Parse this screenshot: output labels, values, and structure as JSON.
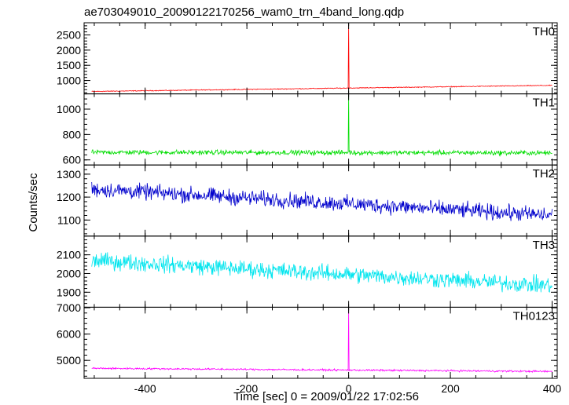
{
  "chart_data": {
    "type": "line",
    "title": "ae703049010_20090122170256_wam0_trn_4band_long.qdp",
    "xlabel": "Time [sec] 0 = 2009/01/22 17:02:56",
    "ylabel": "Counts/sec",
    "xlim": [
      -520,
      410
    ],
    "xticks": [
      -400,
      -200,
      0,
      200,
      400
    ],
    "x_start": -505,
    "x_end": 400,
    "grid": false,
    "panels": [
      {
        "name": "TH0",
        "color": "#ff0000",
        "ylim": [
          560,
          2900
        ],
        "yticks": [
          1000,
          1500,
          2000,
          2500
        ],
        "baseline_start": 640,
        "baseline_end": 840,
        "noise": 20,
        "spike_x": 0,
        "spike_top": 2900,
        "spike_step": 100
      },
      {
        "name": "TH1",
        "color": "#00dd00",
        "ylim": [
          560,
          1120
        ],
        "yticks": [
          600,
          800,
          1000
        ],
        "baseline_start": 660,
        "baseline_end": 655,
        "noise": 28,
        "spike_x": 0,
        "spike_top": 1120,
        "spike_step": 55
      },
      {
        "name": "TH2",
        "color": "#0000cc",
        "ylim": [
          1030,
          1340
        ],
        "yticks": [
          1100,
          1200,
          1300
        ],
        "baseline_start": 1235,
        "baseline_end": 1120,
        "noise": 50
      },
      {
        "name": "TH3",
        "color": "#00e5ee",
        "ylim": [
          1820,
          2200
        ],
        "yticks": [
          1900,
          2000,
          2100
        ],
        "baseline_start": 2070,
        "baseline_end": 1935,
        "noise": 65
      },
      {
        "name": "TH0123",
        "color": "#ff00ff",
        "ylim": [
          4320,
          7020
        ],
        "yticks": [
          5000,
          6000,
          7000
        ],
        "baseline_start": 4700,
        "baseline_end": 4580,
        "noise": 50,
        "spike_x": 0,
        "spike_top": 7020,
        "spike_step": 120
      }
    ]
  }
}
